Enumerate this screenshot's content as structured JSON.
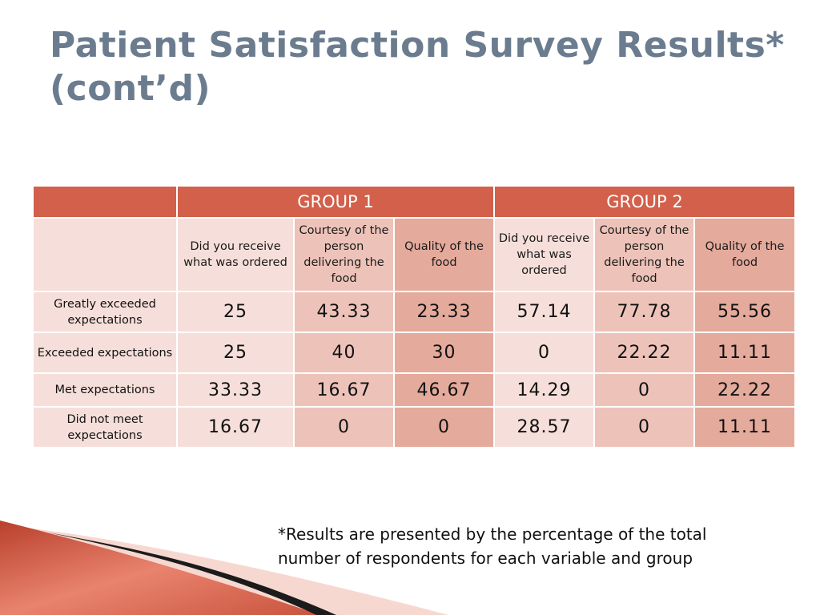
{
  "title": {
    "line1": "Patient Satisfaction Survey Results*",
    "line2": "(cont’d)"
  },
  "table": {
    "groups": [
      "GROUP 1",
      "GROUP 2"
    ],
    "subheaders": [
      "Did you receive what was ordered",
      "Courtesy of the person delivering the food",
      "Quality of the food",
      "Did you receive what was ordered",
      "Courtesy of the person delivering the food",
      "Quality of the food"
    ],
    "rows": [
      {
        "label": "Greatly exceeded expectations",
        "values": [
          "25",
          "43.33",
          "23.33",
          "57.14",
          "77.78",
          "55.56"
        ]
      },
      {
        "label": "Exceeded expectations",
        "values": [
          "25",
          "40",
          "30",
          "0",
          "22.22",
          "11.11"
        ]
      },
      {
        "label": "Met expectations",
        "values": [
          "33.33",
          "16.67",
          "46.67",
          "14.29",
          "0",
          "22.22"
        ]
      },
      {
        "label": "Did not meet expectations",
        "values": [
          "16.67",
          "0",
          "0",
          "28.57",
          "0",
          "11.11"
        ]
      }
    ]
  },
  "footnote": {
    "line1": "*Results are presented by the percentage of the total",
    "line2": "number of respondents for each variable and group"
  },
  "colors": {
    "header": "#d2604a",
    "cell_light": "#f6dfda",
    "cell_mid": "#edc3b9",
    "cell_dark": "#e4aa9c",
    "title": "#6b7c8f"
  }
}
